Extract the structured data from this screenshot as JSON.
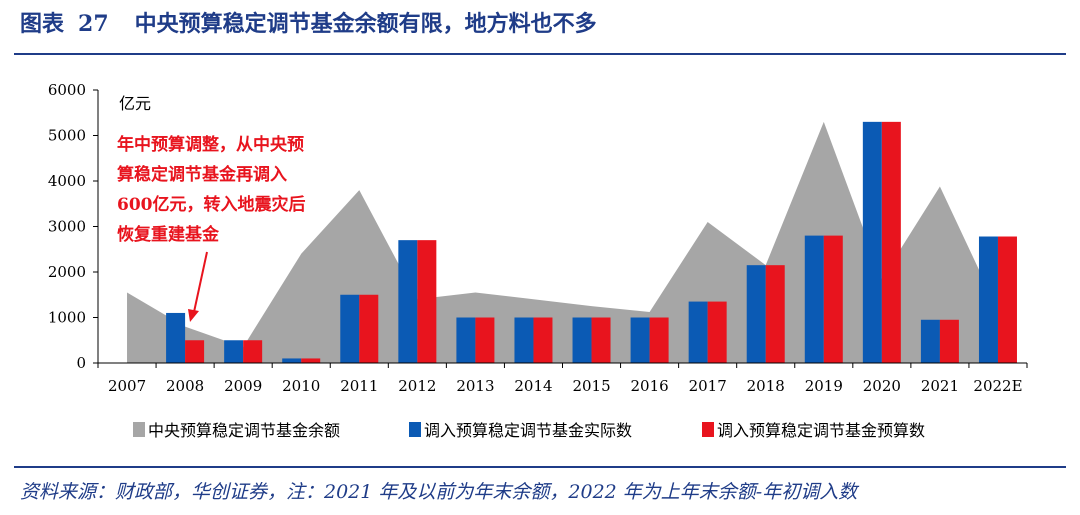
{
  "header": {
    "figure_label": "图表",
    "figure_number": "27",
    "title": "中央预算稳定调节基金余额有限，地方料也不多"
  },
  "footer": {
    "source": "资料来源：财政部，华创证券，注：2021 年及以前为年末余额，2022 年为上年末余额-年初调入数"
  },
  "colors": {
    "title_blue": "#1f3c88",
    "area_gray": "#a6a6a6",
    "bar_blue": "#0b5ab4",
    "bar_red": "#e8141e",
    "annotation_red": "#e8141e"
  },
  "chart_data": {
    "type": "bar",
    "unit_label": "亿元",
    "categories": [
      "2007",
      "2008",
      "2009",
      "2010",
      "2011",
      "2012",
      "2013",
      "2014",
      "2015",
      "2016",
      "2017",
      "2018",
      "2019",
      "2020",
      "2021",
      "2022E"
    ],
    "ylim": [
      0,
      6000
    ],
    "yticks": [
      0,
      1000,
      2000,
      3000,
      4000,
      5000,
      6000
    ],
    "series": [
      {
        "name": "中央预算稳定调节基金余额",
        "type": "area",
        "color": "#a6a6a6",
        "values": [
          1550,
          800,
          350,
          2400,
          3800,
          1400,
          1550,
          1400,
          1250,
          1120,
          3100,
          2150,
          5300,
          1850,
          3880,
          1160
        ]
      },
      {
        "name": "调入预算稳定调节基金实际数",
        "type": "bar",
        "color": "#0b5ab4",
        "values": [
          0,
          1100,
          500,
          100,
          1500,
          2700,
          1000,
          1000,
          1000,
          1000,
          1350,
          2150,
          2800,
          5300,
          950,
          2780
        ]
      },
      {
        "name": "调入预算稳定调节基金预算数",
        "type": "bar",
        "color": "#e8141e",
        "values": [
          0,
          500,
          500,
          100,
          1500,
          2700,
          1000,
          1000,
          1000,
          1000,
          1350,
          2150,
          2800,
          5300,
          950,
          2780
        ]
      }
    ],
    "annotation": {
      "lines": [
        "年中预算调整，从中央预",
        "算稳定调节基金再调入",
        "600亿元，转入地震灾后",
        "恢复重建基金"
      ],
      "points_to_category": "2008"
    },
    "legend_position": "bottom",
    "grid": false
  }
}
